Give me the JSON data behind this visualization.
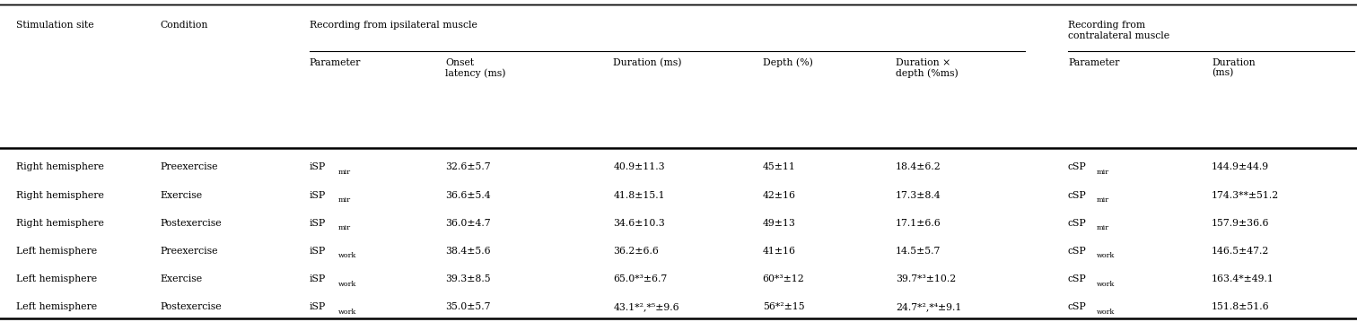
{
  "rows": [
    [
      "Right hemisphere",
      "Preexercise",
      "iSP",
      "mir",
      "32.6±5.7",
      "40.9±11.3",
      "45±11",
      "18.4±6.2",
      "cSP",
      "mir",
      "144.9±44.9"
    ],
    [
      "Right hemisphere",
      "Exercise",
      "iSP",
      "mir",
      "36.6±5.4",
      "41.8±15.1",
      "42±16",
      "17.3±8.4",
      "cSP",
      "mir",
      "174.3**±51.2"
    ],
    [
      "Right hemisphere",
      "Postexercise",
      "iSP",
      "mir",
      "36.0±4.7",
      "34.6±10.3",
      "49±13",
      "17.1±6.6",
      "cSP",
      "mir",
      "157.9±36.6"
    ],
    [
      "Left hemisphere",
      "Preexercise",
      "iSP",
      "work",
      "38.4±5.6",
      "36.2±6.6",
      "41±16",
      "14.5±5.7",
      "cSP",
      "work",
      "146.5±47.2"
    ],
    [
      "Left hemisphere",
      "Exercise",
      "iSP",
      "work",
      "39.3±8.5",
      "65.0*³±6.7",
      "60*³±12",
      "39.7*³±10.2",
      "cSP",
      "work",
      "163.4*±49.1"
    ],
    [
      "Left hemisphere",
      "Postexercise",
      "iSP",
      "work",
      "35.0±5.7",
      "43.1*²,*⁵±9.6",
      "56*²±15",
      "24.7*²,*⁴±9.1",
      "cSP",
      "work",
      "151.8±51.6"
    ]
  ],
  "fontsize": 7.8,
  "bg_color": "#ffffff"
}
